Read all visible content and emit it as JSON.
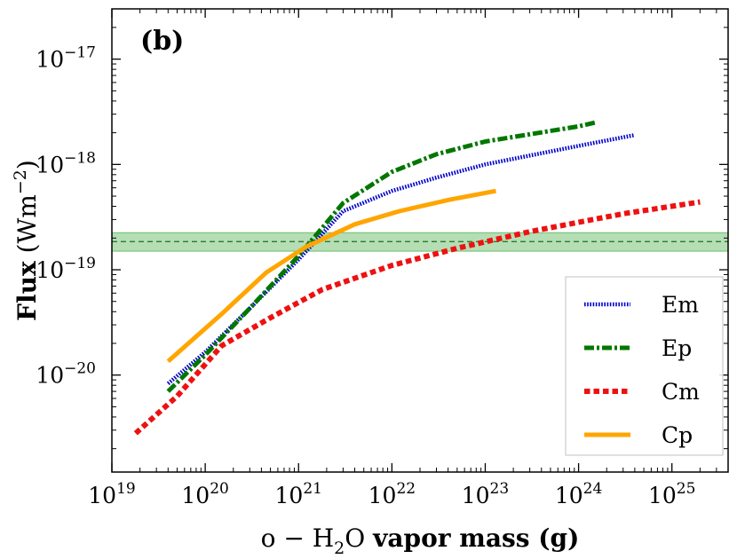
{
  "chart_data": {
    "type": "line",
    "panel_label": "(b)",
    "x_scale": "log",
    "y_scale": "log",
    "xlim": [
      1e+19,
      4e+25
    ],
    "ylim": [
      1.2e-21,
      3e-17
    ],
    "xlabel": {
      "prefix": "o − H",
      "sub": "2",
      "mid": "O ",
      "bold": "vapor mass (g)"
    },
    "ylabel": {
      "bold": "Flux",
      "rest": " (Wm",
      "sup": "−2",
      "end": ")"
    },
    "x_ticks": [
      {
        "value": 1e+19,
        "base": "10",
        "exp": "19"
      },
      {
        "value": 1e+20,
        "base": "10",
        "exp": "20"
      },
      {
        "value": 1e+21,
        "base": "10",
        "exp": "21"
      },
      {
        "value": 1e+22,
        "base": "10",
        "exp": "22"
      },
      {
        "value": 1e+23,
        "base": "10",
        "exp": "23"
      },
      {
        "value": 1e+24,
        "base": "10",
        "exp": "24"
      },
      {
        "value": 1e+25,
        "base": "10",
        "exp": "25"
      }
    ],
    "y_ticks": [
      {
        "value": 1e-20,
        "base": "10",
        "exp": "−20"
      },
      {
        "value": 1e-19,
        "base": "10",
        "exp": "−19"
      },
      {
        "value": 1e-18,
        "base": "10",
        "exp": "−18"
      },
      {
        "value": 1e-17,
        "base": "10",
        "exp": "−17"
      }
    ],
    "reference_band": {
      "value": 1.85e-19,
      "lower": 1.5e-19,
      "upper": 2.25e-19,
      "color": "#2ca02c"
    },
    "series": [
      {
        "name": "Em",
        "style": "dotted",
        "color": "#0000cc",
        "points": [
          [
            4e+19,
            8.3e-21
          ],
          [
            1e+20,
            1.65e-20
          ],
          [
            3e+20,
            4.3e-20
          ],
          [
            1e+21,
            1.25e-19
          ],
          [
            3e+21,
            3.6e-19
          ],
          [
            1e+22,
            5.6e-19
          ],
          [
            3e+22,
            7.5e-19
          ],
          [
            1e+23,
            1e-18
          ],
          [
            1e+24,
            1.5e-18
          ],
          [
            4e+24,
            1.9e-18
          ]
        ]
      },
      {
        "name": "Ep",
        "style": "dashdot",
        "color": "#007700",
        "points": [
          [
            4e+19,
            7e-21
          ],
          [
            1e+20,
            1.55e-20
          ],
          [
            3e+20,
            4.3e-20
          ],
          [
            1e+21,
            1.35e-19
          ],
          [
            3e+21,
            4.3e-19
          ],
          [
            1e+22,
            8.5e-19
          ],
          [
            3e+22,
            1.25e-18
          ],
          [
            1e+23,
            1.65e-18
          ],
          [
            1e+24,
            2.3e-18
          ],
          [
            1.5e+24,
            2.5e-18
          ]
        ]
      },
      {
        "name": "Cm",
        "style": "dashed",
        "color": "#ee1111",
        "points": [
          [
            1.8e+19,
            2.8e-21
          ],
          [
            5e+19,
            6.3e-21
          ],
          [
            1.5e+20,
            1.9e-20
          ],
          [
            5e+20,
            3.5e-20
          ],
          [
            1.8e+21,
            6.5e-20
          ],
          [
            1e+22,
            1.1e-19
          ],
          [
            5e+22,
            1.6e-19
          ],
          [
            3e+23,
            2.3e-19
          ],
          [
            3e+24,
            3.4e-19
          ],
          [
            2e+25,
            4.4e-19
          ]
        ]
      },
      {
        "name": "Cp",
        "style": "solid",
        "color": "#ffa500",
        "points": [
          [
            4e+19,
            1.35e-20
          ],
          [
            1.5e+20,
            3.8e-20
          ],
          [
            4.5e+20,
            9.4e-20
          ],
          [
            1.2e+21,
            1.65e-19
          ],
          [
            4e+21,
            2.7e-19
          ],
          [
            1.2e+22,
            3.6e-19
          ],
          [
            4e+22,
            4.6e-19
          ],
          [
            1.3e+23,
            5.6e-19
          ]
        ]
      }
    ],
    "legend_position": "lower-right"
  }
}
